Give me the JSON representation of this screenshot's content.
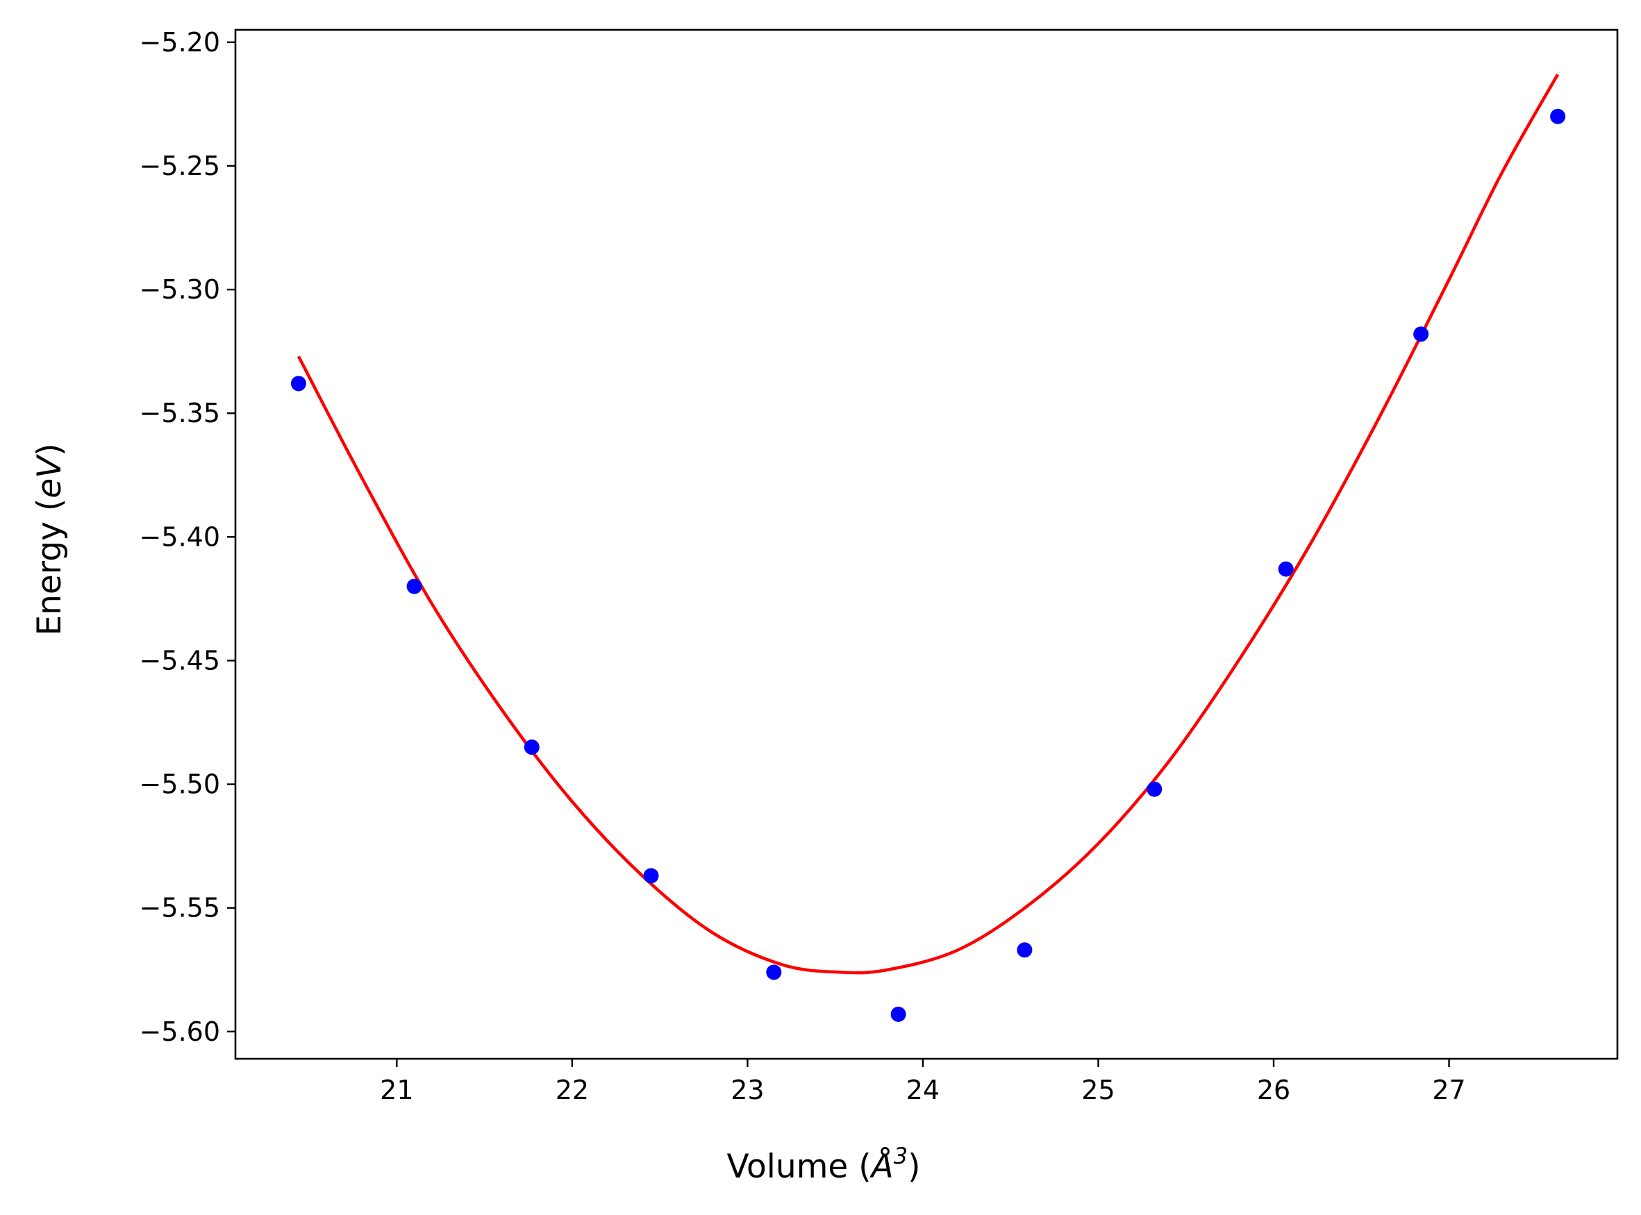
{
  "chart_data": {
    "type": "scatter",
    "title": "",
    "xlabel": "Volume (",
    "xlabel_symbol": "Å",
    "xlabel_exponent": "3",
    "xlabel_close": ")",
    "ylabel": "Energy (",
    "ylabel_unit": "eV",
    "ylabel_close": ")",
    "xlim": [
      20.08,
      27.96
    ],
    "ylim": [
      -5.611,
      -5.195
    ],
    "x_ticks": [
      21,
      22,
      23,
      24,
      25,
      26,
      27
    ],
    "x_tick_labels": [
      "21",
      "22",
      "23",
      "24",
      "25",
      "26",
      "27"
    ],
    "y_ticks": [
      -5.2,
      -5.25,
      -5.3,
      -5.35,
      -5.4,
      -5.45,
      -5.5,
      -5.55,
      -5.6
    ],
    "y_tick_labels": [
      "−5.20",
      "−5.25",
      "−5.30",
      "−5.35",
      "−5.40",
      "−5.45",
      "−5.50",
      "−5.55",
      "−5.60"
    ],
    "grid": false,
    "series": [
      {
        "kind": "points",
        "color": "#0000ff",
        "x": [
          20.44,
          21.1,
          21.77,
          22.45,
          23.15,
          23.86,
          24.58,
          25.32,
          26.07,
          26.84,
          27.62
        ],
        "y": [
          -5.338,
          -5.42,
          -5.485,
          -5.537,
          -5.576,
          -5.593,
          -5.567,
          -5.502,
          -5.413,
          -5.318,
          -5.23
        ]
      },
      {
        "kind": "fit-curve",
        "color": "#ff0000",
        "x": [
          20.44,
          20.8,
          21.2,
          21.6,
          22.0,
          22.4,
          22.8,
          23.2,
          23.53,
          23.8,
          24.2,
          24.6,
          25.0,
          25.4,
          25.8,
          26.2,
          26.6,
          27.0,
          27.3,
          27.62
        ],
        "y": [
          -5.327,
          -5.376,
          -5.427,
          -5.47,
          -5.507,
          -5.537,
          -5.56,
          -5.573,
          -5.576,
          -5.575,
          -5.567,
          -5.549,
          -5.524,
          -5.491,
          -5.45,
          -5.404,
          -5.352,
          -5.296,
          -5.253,
          -5.213
        ]
      }
    ]
  },
  "colors": {
    "points": "#0000ff",
    "fit_line": "#ff0000",
    "axes": "#000000"
  }
}
